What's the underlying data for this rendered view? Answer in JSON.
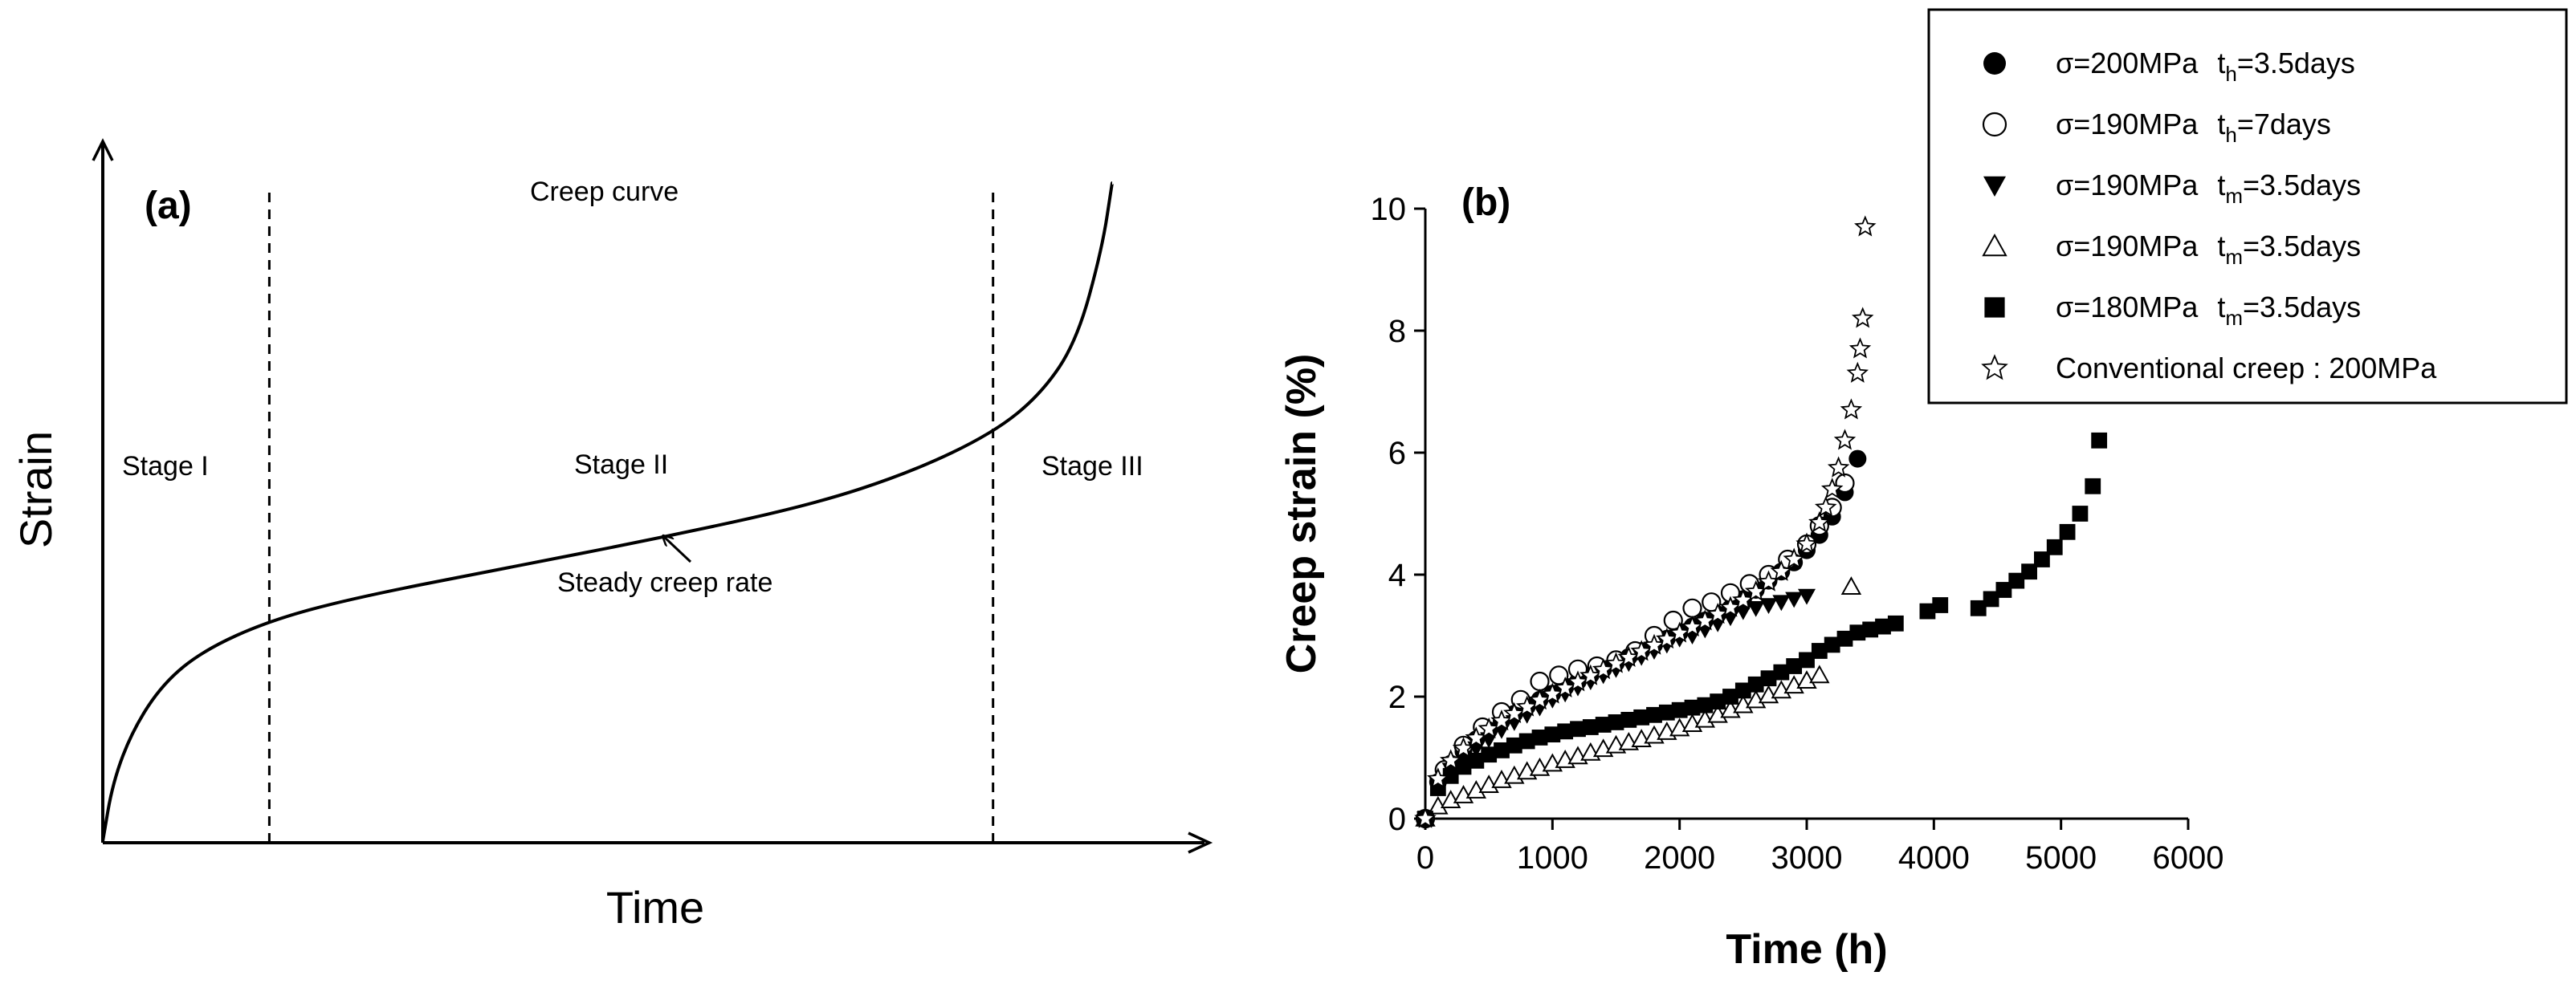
{
  "chart_data": [
    {
      "type": "line",
      "panel_label": "(a)",
      "title": "Creep curve",
      "xlabel": "Time",
      "ylabel": "Strain",
      "stage_labels": [
        "Stage I",
        "Stage II",
        "Stage III"
      ],
      "annotation": "Steady creep rate",
      "stage_boundaries": [
        0.165,
        0.882
      ],
      "curve": {
        "x": [
          0,
          0.01,
          0.03,
          0.06,
          0.1,
          0.165,
          0.25,
          0.4,
          0.55,
          0.7,
          0.8,
          0.882,
          0.93,
          0.965,
          0.99,
          1.0
        ],
        "y": [
          0,
          0.09,
          0.17,
          0.24,
          0.29,
          0.335,
          0.37,
          0.415,
          0.46,
          0.51,
          0.56,
          0.62,
          0.68,
          0.76,
          0.9,
          1.0
        ]
      }
    },
    {
      "type": "scatter",
      "panel_label": "(b)",
      "xlabel": "Time (h)",
      "ylabel": "Creep strain (%)",
      "xlim": [
        0,
        6000
      ],
      "ylim": [
        0,
        10
      ],
      "xticks": [
        "0",
        "1000",
        "2000",
        "3000",
        "4000",
        "5000",
        "6000"
      ],
      "yticks": [
        "0",
        "2",
        "4",
        "6",
        "8",
        "10"
      ],
      "legend": {
        "position": "top-right",
        "entries": [
          {
            "marker": "filled-circle",
            "sigma": "σ=200MPa",
            "t_main": "t",
            "t_sub": "h",
            "t_rest": "=3.5days"
          },
          {
            "marker": "open-circle",
            "sigma": "σ=190MPa",
            "t_main": "t",
            "t_sub": "h",
            "t_rest": "=7days"
          },
          {
            "marker": "filled-triangle-down",
            "sigma": "σ=190MPa",
            "t_main": "t",
            "t_sub": "m",
            "t_rest": "=3.5days"
          },
          {
            "marker": "open-triangle-up",
            "sigma": "σ=190MPa",
            "t_main": "t",
            "t_sub": "m",
            "t_rest": "=3.5days"
          },
          {
            "marker": "filled-square",
            "sigma": "σ=180MPa",
            "t_main": "t",
            "t_sub": "m",
            "t_rest": "=3.5days"
          },
          {
            "marker": "open-star",
            "label": "Conventional creep : 200MPa"
          }
        ]
      },
      "series": [
        {
          "name": "σ=200MPa th=3.5days",
          "marker": "filled-circle",
          "x": [
            0,
            100,
            200,
            300,
            400,
            500,
            600,
            700,
            800,
            900,
            1000,
            1100,
            1200,
            1300,
            1400,
            1500,
            1600,
            1700,
            1800,
            1900,
            2000,
            2100,
            2200,
            2300,
            2400,
            2500,
            2600,
            2700,
            2800,
            2900,
            3000,
            3100,
            3200,
            3300,
            3400
          ],
          "y": [
            0,
            0.6,
            0.9,
            1.1,
            1.3,
            1.45,
            1.6,
            1.72,
            1.84,
            1.95,
            2.05,
            2.15,
            2.25,
            2.35,
            2.45,
            2.55,
            2.65,
            2.75,
            2.85,
            2.95,
            3.05,
            3.15,
            3.25,
            3.35,
            3.45,
            3.6,
            3.75,
            3.9,
            4.05,
            4.2,
            4.4,
            4.65,
            4.95,
            5.35,
            5.9
          ]
        },
        {
          "name": "σ=190MPa th=7days",
          "marker": "open-circle",
          "x": [
            0,
            150,
            300,
            450,
            600,
            750,
            900,
            1050,
            1200,
            1350,
            1500,
            1650,
            1800,
            1950,
            2100,
            2250,
            2400,
            2550,
            2700,
            2850,
            3000,
            3100,
            3200,
            3300
          ],
          "y": [
            0,
            0.8,
            1.2,
            1.5,
            1.75,
            1.95,
            2.25,
            2.35,
            2.45,
            2.5,
            2.6,
            2.75,
            3.0,
            3.25,
            3.45,
            3.55,
            3.7,
            3.85,
            4.0,
            4.25,
            4.5,
            4.8,
            5.1,
            5.5
          ]
        },
        {
          "name": "σ=190MPa tm=3.5days (filled)",
          "marker": "filled-triangle-down",
          "x": [
            0,
            100,
            200,
            300,
            400,
            500,
            600,
            700,
            800,
            900,
            1000,
            1100,
            1200,
            1300,
            1400,
            1500,
            1600,
            1700,
            1800,
            1900,
            2000,
            2100,
            2200,
            2300,
            2400,
            2500,
            2600,
            2700,
            2800,
            2900,
            3000
          ],
          "y": [
            0,
            0.55,
            0.8,
            1.0,
            1.15,
            1.3,
            1.45,
            1.58,
            1.7,
            1.82,
            1.95,
            2.05,
            2.15,
            2.25,
            2.35,
            2.45,
            2.55,
            2.65,
            2.75,
            2.85,
            2.95,
            3.0,
            3.1,
            3.2,
            3.3,
            3.4,
            3.45,
            3.5,
            3.55,
            3.6,
            3.65
          ]
        },
        {
          "name": "σ=190MPa tm=3.5days (open)",
          "marker": "open-triangle-up",
          "x": [
            0,
            100,
            200,
            300,
            400,
            500,
            600,
            700,
            800,
            900,
            1000,
            1100,
            1200,
            1300,
            1400,
            1500,
            1600,
            1700,
            1800,
            1900,
            2000,
            2100,
            2200,
            2300,
            2400,
            2500,
            2600,
            2700,
            2800,
            2900,
            3000,
            3100,
            3350
          ],
          "y": [
            0,
            0.2,
            0.3,
            0.38,
            0.46,
            0.55,
            0.63,
            0.7,
            0.77,
            0.83,
            0.9,
            0.96,
            1.02,
            1.08,
            1.14,
            1.2,
            1.25,
            1.3,
            1.36,
            1.42,
            1.48,
            1.55,
            1.62,
            1.7,
            1.78,
            1.86,
            1.94,
            2.02,
            2.1,
            2.18,
            2.26,
            2.35,
            3.8
          ]
        },
        {
          "name": "σ=180MPa tm=3.5days",
          "marker": "filled-square",
          "x": [
            0,
            100,
            200,
            300,
            400,
            500,
            600,
            700,
            800,
            900,
            1000,
            1100,
            1200,
            1300,
            1400,
            1500,
            1600,
            1700,
            1800,
            1900,
            2000,
            2100,
            2200,
            2300,
            2400,
            2500,
            2600,
            2700,
            2800,
            2900,
            3000,
            3100,
            3200,
            3300,
            3400,
            3500,
            3600,
            3700,
            3950,
            4050,
            4350,
            4450,
            4550,
            4650,
            4750,
            4850,
            4950,
            5050,
            5150,
            5250,
            5300
          ],
          "y": [
            0,
            0.5,
            0.7,
            0.85,
            0.95,
            1.05,
            1.12,
            1.2,
            1.27,
            1.33,
            1.38,
            1.43,
            1.47,
            1.5,
            1.54,
            1.58,
            1.62,
            1.66,
            1.7,
            1.74,
            1.78,
            1.82,
            1.86,
            1.92,
            2.0,
            2.1,
            2.2,
            2.3,
            2.4,
            2.5,
            2.6,
            2.75,
            2.85,
            2.95,
            3.05,
            3.1,
            3.15,
            3.2,
            3.4,
            3.5,
            3.45,
            3.6,
            3.75,
            3.9,
            4.05,
            4.25,
            4.45,
            4.7,
            5.0,
            5.45,
            6.2
          ]
        },
        {
          "name": "Conventional creep : 200MPa",
          "marker": "open-star",
          "x": [
            0,
            100,
            200,
            300,
            400,
            500,
            600,
            700,
            800,
            900,
            1000,
            1100,
            1200,
            1300,
            1400,
            1500,
            1600,
            1700,
            1800,
            1900,
            2000,
            2100,
            2200,
            2300,
            2400,
            2500,
            2600,
            2700,
            2800,
            2900,
            3000,
            3100,
            3150,
            3200,
            3250,
            3300,
            3350,
            3400,
            3420,
            3440,
            3460
          ],
          "y": [
            0,
            0.65,
            0.95,
            1.15,
            1.32,
            1.47,
            1.6,
            1.72,
            1.83,
            1.94,
            2.04,
            2.14,
            2.24,
            2.34,
            2.44,
            2.54,
            2.64,
            2.74,
            2.84,
            2.94,
            3.04,
            3.14,
            3.24,
            3.35,
            3.46,
            3.58,
            3.72,
            3.88,
            4.05,
            4.25,
            4.5,
            4.85,
            5.1,
            5.4,
            5.75,
            6.2,
            6.7,
            7.3,
            7.7,
            8.2,
            9.7
          ]
        }
      ]
    }
  ]
}
